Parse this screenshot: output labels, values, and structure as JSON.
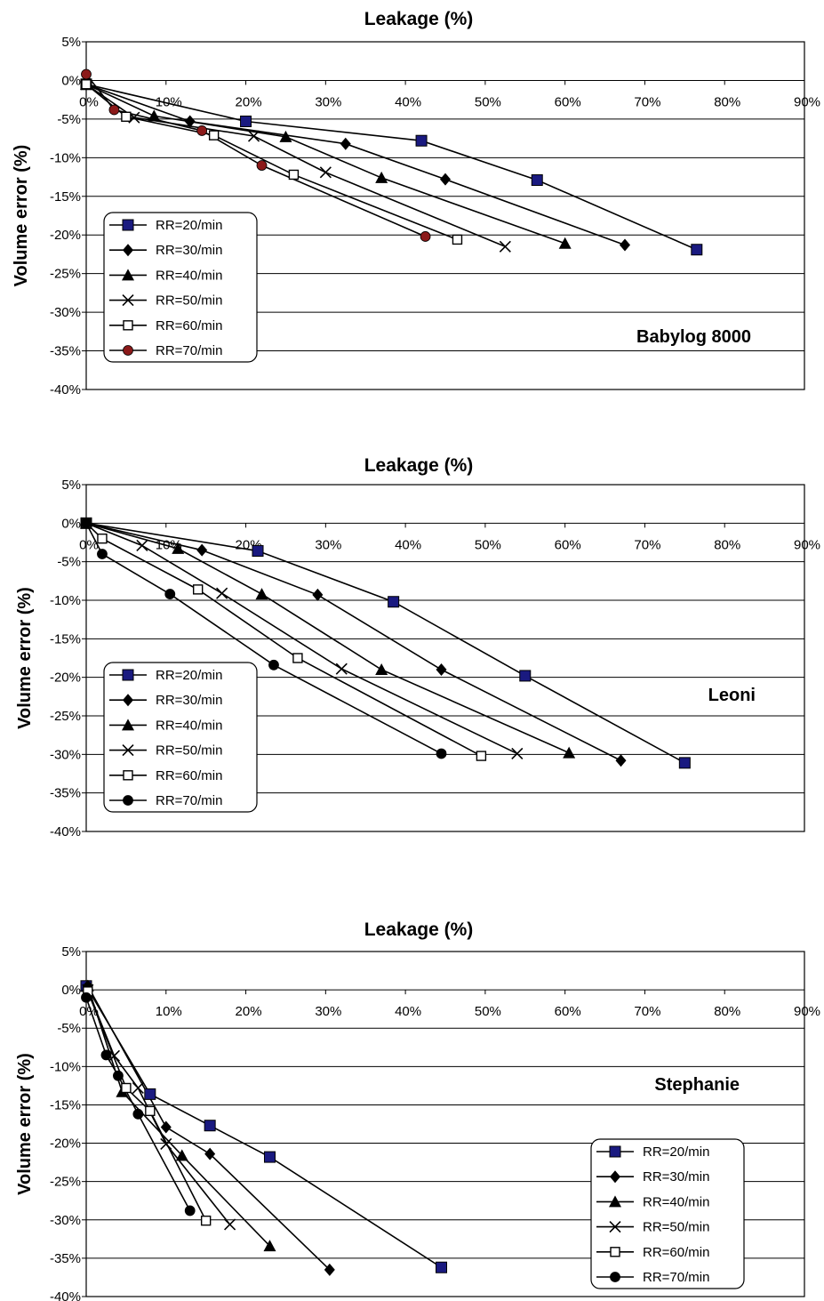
{
  "chart_data": [
    {
      "type": "line",
      "title": "Leakage (%)",
      "ylabel": "Volume error (%)",
      "annotation": "Babylog 8000",
      "x_ticks": [
        "0%",
        "10%",
        "20%",
        "30%",
        "40%",
        "50%",
        "60%",
        "70%",
        "80%",
        "90%"
      ],
      "y_ticks": [
        "5%",
        "0%",
        "-5%",
        "-10%",
        "-15%",
        "-20%",
        "-25%",
        "-30%",
        "-35%",
        "-40%"
      ],
      "xlim": [
        0,
        90
      ],
      "ylim": [
        -40,
        5
      ],
      "grid": "horizontal",
      "legend_position": "left",
      "series": [
        {
          "name": "RR=20/min",
          "marker": "filled-square",
          "color": "#1a1a80",
          "x": [
            0,
            20,
            42,
            56.5,
            76.5
          ],
          "y": [
            -0.5,
            -5.3,
            -7.8,
            -12.9,
            -21.9
          ]
        },
        {
          "name": "RR=30/min",
          "marker": "diamond",
          "color": "#000000",
          "x": [
            0,
            13,
            32.5,
            45,
            67.5
          ],
          "y": [
            -0.5,
            -5.3,
            -8.2,
            -12.8,
            -21.3
          ]
        },
        {
          "name": "RR=40/min",
          "marker": "triangle",
          "color": "#000000",
          "x": [
            0,
            8.5,
            25,
            37,
            60
          ],
          "y": [
            -0.5,
            -4.6,
            -7.3,
            -12.6,
            -21.1
          ]
        },
        {
          "name": "RR=50/min",
          "marker": "x",
          "color": "#000000",
          "x": [
            0,
            6,
            21,
            30,
            52.5
          ],
          "y": [
            -0.5,
            -4.8,
            -7.2,
            -11.9,
            -21.5
          ]
        },
        {
          "name": "RR=60/min",
          "marker": "open-square",
          "color": "#000000",
          "x": [
            0,
            5,
            16,
            26,
            46.5
          ],
          "y": [
            -0.5,
            -4.7,
            -7.1,
            -12.2,
            -20.6
          ]
        },
        {
          "name": "RR=70/min",
          "marker": "filled-circle",
          "color": "#8b1a1a",
          "x": [
            0,
            3.5,
            14.5,
            22,
            42.5
          ],
          "y": [
            0.8,
            -3.8,
            -6.5,
            -11,
            -20.2
          ]
        }
      ]
    },
    {
      "type": "line",
      "title": "Leakage (%)",
      "ylabel": "Volume error (%)",
      "annotation": "Leoni",
      "x_ticks": [
        "0%",
        "10%",
        "20%",
        "30%",
        "40%",
        "50%",
        "60%",
        "70%",
        "80%",
        "90%"
      ],
      "y_ticks": [
        "5%",
        "0%",
        "-5%",
        "-10%",
        "-15%",
        "-20%",
        "-25%",
        "-30%",
        "-35%",
        "-40%"
      ],
      "xlim": [
        0,
        90
      ],
      "ylim": [
        -40,
        5
      ],
      "grid": "horizontal",
      "legend_position": "left",
      "series": [
        {
          "name": "RR=20/min",
          "marker": "filled-square",
          "color": "#1a1a80",
          "x": [
            0,
            21.5,
            38.5,
            55,
            75
          ],
          "y": [
            0,
            -3.6,
            -10.2,
            -19.8,
            -31.1
          ]
        },
        {
          "name": "RR=30/min",
          "marker": "diamond",
          "color": "#000000",
          "x": [
            0,
            14.5,
            29,
            44.5,
            67
          ],
          "y": [
            0,
            -3.5,
            -9.3,
            -19,
            -30.8
          ]
        },
        {
          "name": "RR=40/min",
          "marker": "triangle",
          "color": "#000000",
          "x": [
            0,
            11.5,
            22,
            37,
            60.5
          ],
          "y": [
            0,
            -3.3,
            -9.2,
            -19,
            -29.8
          ]
        },
        {
          "name": "RR=50/min",
          "marker": "x",
          "color": "#000000",
          "x": [
            0,
            7,
            17,
            32,
            54
          ],
          "y": [
            0,
            -2.9,
            -9.1,
            -18.9,
            -29.9
          ]
        },
        {
          "name": "RR=60/min",
          "marker": "open-square",
          "color": "#000000",
          "x": [
            0,
            2,
            14,
            26.5,
            49.5
          ],
          "y": [
            0,
            -2,
            -8.6,
            -17.5,
            -30.2
          ]
        },
        {
          "name": "RR=70/min",
          "marker": "filled-circle",
          "color": "#000000",
          "x": [
            0,
            2,
            10.5,
            23.5,
            44.5
          ],
          "y": [
            0,
            -4,
            -9.2,
            -18.4,
            -29.9
          ]
        }
      ]
    },
    {
      "type": "line",
      "title": "Leakage (%)",
      "ylabel": "Volume error (%)",
      "annotation": "Stephanie",
      "x_ticks": [
        "0%",
        "10%",
        "20%",
        "30%",
        "40%",
        "50%",
        "60%",
        "70%",
        "80%",
        "90%"
      ],
      "y_ticks": [
        "5%",
        "0%",
        "-5%",
        "-10%",
        "-15%",
        "-20%",
        "-25%",
        "-30%",
        "-35%",
        "-40%"
      ],
      "xlim": [
        0,
        90
      ],
      "ylim": [
        -40,
        5
      ],
      "grid": "horizontal",
      "legend_position": "bottom-right",
      "series": [
        {
          "name": "RR=20/min",
          "marker": "filled-square",
          "color": "#1a1a80",
          "x": [
            0,
            8,
            15.5,
            23,
            44.5
          ],
          "y": [
            0.5,
            -13.6,
            -17.7,
            -21.8,
            -36.2
          ]
        },
        {
          "name": "RR=30/min",
          "marker": "diamond",
          "color": "#000000",
          "x": [
            0.2,
            10,
            15.5,
            30.5
          ],
          "y": [
            0.5,
            -17.9,
            -21.4,
            -36.5
          ]
        },
        {
          "name": "RR=40/min",
          "marker": "triangle",
          "color": "#000000",
          "x": [
            0.2,
            4.5,
            12,
            23
          ],
          "y": [
            0.5,
            -13.3,
            -21.6,
            -33.4
          ]
        },
        {
          "name": "RR=50/min",
          "marker": "x",
          "color": "#000000",
          "x": [
            0.2,
            3.5,
            6.5,
            10,
            18
          ],
          "y": [
            0,
            -8.6,
            -12.8,
            -20.1,
            -30.6
          ]
        },
        {
          "name": "RR=60/min",
          "marker": "open-square",
          "color": "#000000",
          "x": [
            0.2,
            5,
            8,
            15
          ],
          "y": [
            -0.2,
            -12.8,
            -15.8,
            -30.1
          ]
        },
        {
          "name": "RR=70/min",
          "marker": "filled-circle",
          "color": "#000000",
          "x": [
            0,
            2.5,
            4,
            6.5,
            13
          ],
          "y": [
            -1,
            -8.5,
            -11.2,
            -16.2,
            -28.8
          ]
        }
      ]
    }
  ]
}
